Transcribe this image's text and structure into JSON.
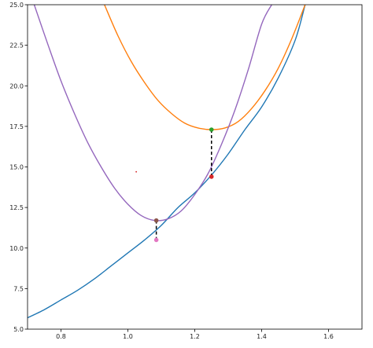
{
  "chart_data": {
    "type": "line",
    "title": "",
    "xlabel": "",
    "ylabel": "",
    "xlim": [
      0.7,
      1.7
    ],
    "ylim": [
      5.0,
      25.0
    ],
    "grid": false,
    "x_ticks": [
      0.8,
      1.0,
      1.2,
      1.4,
      1.6
    ],
    "x_tick_labels": [
      "0.8",
      "1.0",
      "1.2",
      "1.4",
      "1.6"
    ],
    "y_ticks": [
      5.0,
      7.5,
      10.0,
      12.5,
      15.0,
      17.5,
      20.0,
      22.5,
      25.0
    ],
    "y_tick_labels": [
      "5.0",
      "7.5",
      "10.0",
      "12.5",
      "15.0",
      "17.5",
      "20.0",
      "22.5",
      "25.0"
    ],
    "series": [
      {
        "color": "#1f77b4",
        "x": [
          0.7,
          0.75,
          0.8,
          0.85,
          0.9,
          0.95,
          1.0,
          1.05,
          1.1,
          1.15,
          1.2,
          1.25,
          1.3,
          1.35,
          1.4,
          1.45,
          1.5,
          1.53
        ],
        "y": [
          5.7,
          6.2,
          6.8,
          7.4,
          8.1,
          8.9,
          9.7,
          10.5,
          11.4,
          12.5,
          13.4,
          14.5,
          15.8,
          17.3,
          18.7,
          20.5,
          22.8,
          25.0
        ]
      },
      {
        "color": "#ff7f0e",
        "x": [
          0.93,
          0.97,
          1.01,
          1.05,
          1.09,
          1.13,
          1.17,
          1.21,
          1.25,
          1.29,
          1.33,
          1.37,
          1.41,
          1.45,
          1.49,
          1.53
        ],
        "y": [
          25.0,
          23.1,
          21.5,
          20.2,
          19.1,
          18.3,
          17.7,
          17.4,
          17.3,
          17.4,
          17.8,
          18.6,
          19.7,
          21.1,
          22.9,
          25.0
        ]
      },
      {
        "color": "#9467bd",
        "x": [
          0.72,
          0.76,
          0.8,
          0.84,
          0.88,
          0.92,
          0.96,
          1.0,
          1.04,
          1.08,
          1.12,
          1.16,
          1.2,
          1.24,
          1.28,
          1.32,
          1.36,
          1.4,
          1.43
        ],
        "y": [
          25.0,
          22.6,
          20.3,
          18.3,
          16.5,
          15.0,
          13.7,
          12.7,
          12.0,
          11.7,
          11.8,
          12.3,
          13.3,
          14.6,
          16.4,
          18.5,
          21.0,
          23.8,
          25.0
        ]
      }
    ],
    "markers": [
      {
        "x": 1.25,
        "y": 17.3,
        "color": "#2ca02c"
      },
      {
        "x": 1.25,
        "y": 14.4,
        "color": "#d62728"
      },
      {
        "x": 1.085,
        "y": 11.7,
        "color": "#8c564b"
      },
      {
        "x": 1.085,
        "y": 10.5,
        "color": "#e377c2"
      },
      {
        "x": 1.025,
        "y": 14.7,
        "color": "#d62728",
        "tiny": true
      }
    ],
    "dashed_segments": [
      {
        "x": 1.25,
        "y1": 17.3,
        "y2": 14.4,
        "color": "#000000"
      },
      {
        "x": 1.085,
        "y1": 11.7,
        "y2": 10.5,
        "color": "#000000"
      }
    ]
  }
}
